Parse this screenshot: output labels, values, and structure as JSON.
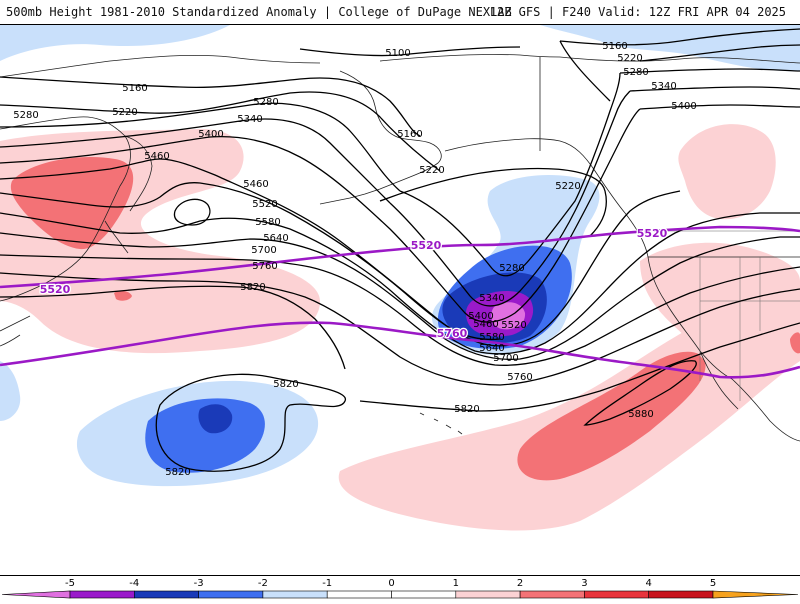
{
  "header": {
    "left": "500mb Height 1981-2010 Standardized Anomaly | College of DuPage NEXLAB",
    "right": "12Z GFS | F240 Valid: 12Z FRI APR 04 2025"
  },
  "colors": {
    "neg5": "#e070e0",
    "neg4": "#9a1aca",
    "neg3": "#1a3ab8",
    "neg2": "#3f6ff0",
    "neg1": "#c9e0fb",
    "pos1": "#fcd2d4",
    "pos2": "#f37276",
    "pos3": "#e8343c",
    "pos4": "#c8141e",
    "pos5": "#f6a21e",
    "highlight": "#9b19c6"
  },
  "contour_labels": [
    {
      "id": "5100",
      "text": "5100"
    },
    {
      "id": "5160a",
      "text": "5160"
    },
    {
      "id": "5160b",
      "text": "5160"
    },
    {
      "id": "5160c",
      "text": "5160"
    },
    {
      "id": "5220a",
      "text": "5220"
    },
    {
      "id": "5220b",
      "text": "5220"
    },
    {
      "id": "5220c",
      "text": "5220"
    },
    {
      "id": "5220d",
      "text": "5220"
    },
    {
      "id": "5280a",
      "text": "5280"
    },
    {
      "id": "5280b",
      "text": "5280"
    },
    {
      "id": "5280c",
      "text": "5280"
    },
    {
      "id": "5280d",
      "text": "5280"
    },
    {
      "id": "5340a",
      "text": "5340"
    },
    {
      "id": "5340b",
      "text": "5340"
    },
    {
      "id": "5340c",
      "text": "5340"
    },
    {
      "id": "5400a",
      "text": "5400"
    },
    {
      "id": "5400b",
      "text": "5400"
    },
    {
      "id": "5400c",
      "text": "5400"
    },
    {
      "id": "5460a",
      "text": "5460"
    },
    {
      "id": "5460b",
      "text": "5460"
    },
    {
      "id": "5460c",
      "text": "5460"
    },
    {
      "id": "5520a",
      "text": "5520"
    },
    {
      "id": "5520b",
      "text": "5520"
    },
    {
      "id": "5580a",
      "text": "5580"
    },
    {
      "id": "5580b",
      "text": "5580"
    },
    {
      "id": "5640a",
      "text": "5640"
    },
    {
      "id": "5640b",
      "text": "5640"
    },
    {
      "id": "5700a",
      "text": "5700"
    },
    {
      "id": "5700b",
      "text": "5700"
    },
    {
      "id": "5760a",
      "text": "5760"
    },
    {
      "id": "5760b",
      "text": "5760"
    },
    {
      "id": "5820a",
      "text": "5820"
    },
    {
      "id": "5820b",
      "text": "5820"
    },
    {
      "id": "5820c",
      "text": "5820"
    },
    {
      "id": "5820d",
      "text": "5820"
    },
    {
      "id": "5880",
      "text": "5880"
    }
  ],
  "highlight_labels": [
    {
      "id": "p5520a",
      "text": "5520"
    },
    {
      "id": "p5520b",
      "text": "5520"
    },
    {
      "id": "p5520c",
      "text": "5520"
    },
    {
      "id": "p5760",
      "text": "5760"
    }
  ],
  "legend": {
    "ticks": [
      "-5",
      "-4",
      "-3",
      "-2",
      "-1",
      "0",
      "1",
      "2",
      "3",
      "4",
      "5"
    ]
  }
}
